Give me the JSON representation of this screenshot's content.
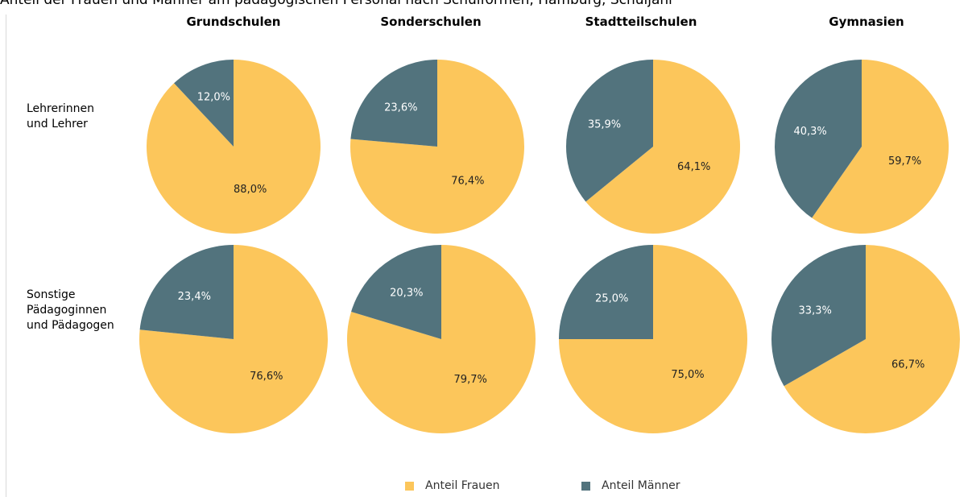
{
  "top_caption": "Anteil der Frauen und Männer am pädagogischen Personal nach Schulformen, Hamburg, Schuljahr",
  "colors": {
    "frauen": "#FCC65B",
    "maenner": "#52737D",
    "label_on_dark": "#ffffff",
    "label_on_light": "#222222"
  },
  "column_headers": [
    "Grundschulen",
    "Sonderschulen",
    "Stadtteilschulen",
    "Gymnasien"
  ],
  "row_labels": [
    [
      "Lehrerinnen",
      "und Lehrer"
    ],
    [
      "Sonstige",
      "Pädagoginnen",
      "und Pädagogen"
    ]
  ],
  "legend": {
    "frauen": "Anteil Frauen",
    "maenner": "Anteil Männer"
  },
  "chart_data": {
    "type": "pie",
    "series_names": [
      "Anteil Frauen",
      "Anteil Männer"
    ],
    "charts": [
      {
        "row": "Lehrerinnen und Lehrer",
        "column": "Grundschulen",
        "frauen": 88.0,
        "maenner": 12.0,
        "frauen_label": "88,0%",
        "maenner_label": "12,0%"
      },
      {
        "row": "Lehrerinnen und Lehrer",
        "column": "Sonderschulen",
        "frauen": 76.4,
        "maenner": 23.6,
        "frauen_label": "76,4%",
        "maenner_label": "23,6%"
      },
      {
        "row": "Lehrerinnen und Lehrer",
        "column": "Stadtteilschulen",
        "frauen": 64.1,
        "maenner": 35.9,
        "frauen_label": "64,1%",
        "maenner_label": "35,9%"
      },
      {
        "row": "Lehrerinnen und Lehrer",
        "column": "Gymnasien",
        "frauen": 59.7,
        "maenner": 40.3,
        "frauen_label": "59,7%",
        "maenner_label": "40,3%"
      },
      {
        "row": "Sonstige Pädagoginnen und Pädagogen",
        "column": "Grundschulen",
        "frauen": 76.6,
        "maenner": 23.4,
        "frauen_label": "76,6%",
        "maenner_label": "23,4%"
      },
      {
        "row": "Sonstige Pädagoginnen und Pädagogen",
        "column": "Sonderschulen",
        "frauen": 79.7,
        "maenner": 20.3,
        "frauen_label": "79,7%",
        "maenner_label": "20,3%"
      },
      {
        "row": "Sonstige Pädagoginnen und Pädagogen",
        "column": "Stadtteilschulen",
        "frauen": 75.0,
        "maenner": 25.0,
        "frauen_label": "75,0%",
        "maenner_label": "25,0%"
      },
      {
        "row": "Sonstige Pädagoginnen und Pädagogen",
        "column": "Gymnasien",
        "frauen": 66.7,
        "maenner": 33.3,
        "frauen_label": "66,7%",
        "maenner_label": "33,3%"
      }
    ]
  }
}
